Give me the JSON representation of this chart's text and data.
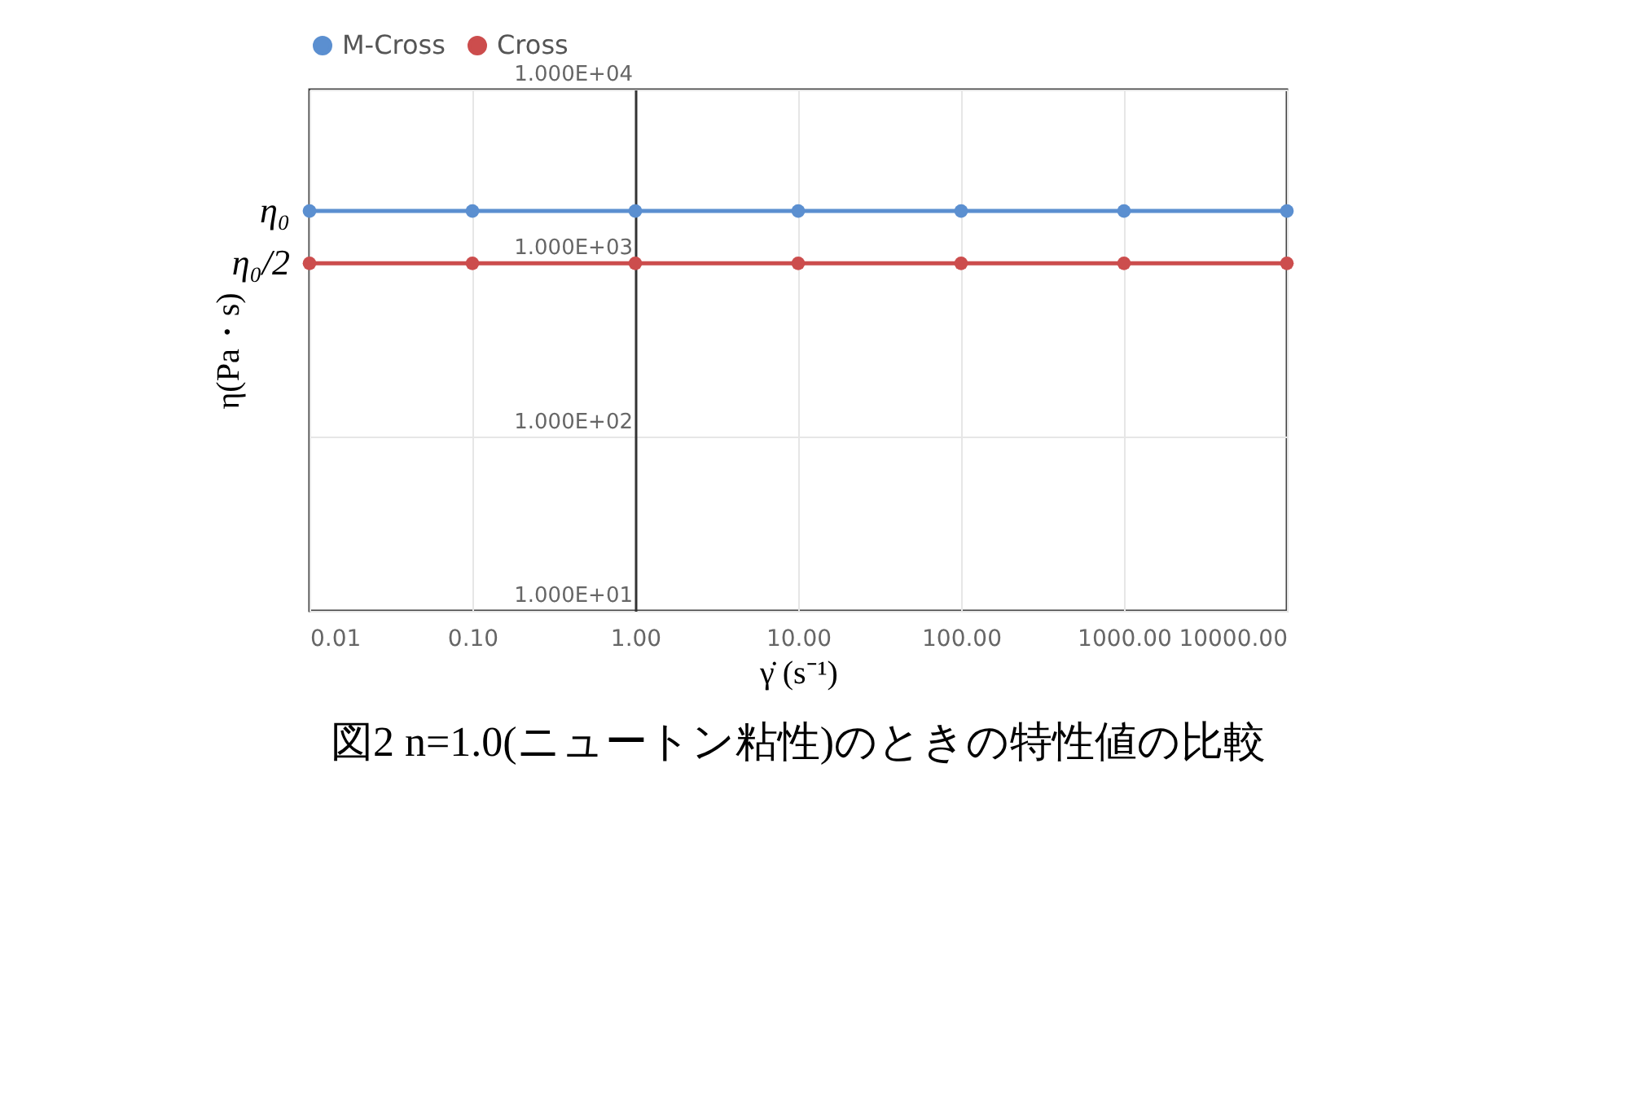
{
  "chart_data": {
    "type": "line",
    "title": "図2 n=1.0(ニュートン粘性)のときの特性値の比較",
    "xlabel": "γ̇ (s⁻¹)",
    "ylabel": "η(Pa・s)",
    "x": [
      0.01,
      0.1,
      1,
      10,
      100,
      1000,
      10000
    ],
    "series": [
      {
        "name": "M-Cross",
        "color": "#5b8fd0",
        "values": [
          2000,
          2000,
          2000,
          2000,
          2000,
          2000,
          2000
        ]
      },
      {
        "name": "Cross",
        "color": "#cc4d4d",
        "values": [
          1000,
          1000,
          1000,
          1000,
          1000,
          1000,
          1000
        ]
      }
    ],
    "log": "xy",
    "xlim": [
      0.01,
      10000
    ],
    "ylim": [
      10,
      10000
    ],
    "xticks": [
      0.01,
      {
        "value": 0.1,
        "label": "0.10"
      },
      {
        "value": 1,
        "label": "1.00"
      },
      {
        "value": 10,
        "label": "10.00"
      },
      {
        "value": 100,
        "label": "100.00"
      },
      {
        "value": 1000,
        "label": "1000.00"
      },
      {
        "value": 10000,
        "label": "10000.00"
      }
    ],
    "yticks": [
      {
        "value": 10,
        "label": "1.000E+01"
      },
      {
        "value": 100,
        "label": "1.000E+02"
      },
      {
        "value": 1000,
        "label": "1.000E+03"
      },
      {
        "value": 10000,
        "label": "1.000E+04"
      }
    ],
    "annotations": [
      {
        "text": "η₀",
        "x": 0.01,
        "y": 2000
      },
      {
        "text": "η₀/2",
        "x": 0.01,
        "y": 1000
      }
    ],
    "grid": true,
    "legend": "top",
    "marker": "circle",
    "line_style": "solid"
  }
}
